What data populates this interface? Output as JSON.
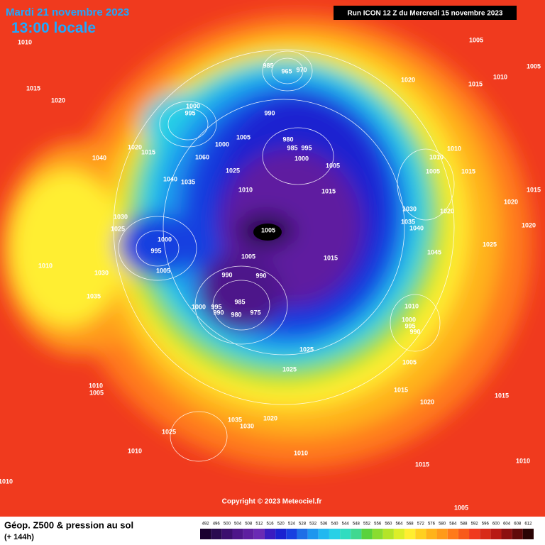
{
  "header": {
    "date": "Mardi 21 novembre 2023",
    "time": "13:00 locale",
    "run": "Run ICON 12 Z du Mercredi 15 novembre 2023"
  },
  "map": {
    "pressure_labels": [
      1010,
      1015,
      1020,
      1005,
      1010,
      1005,
      1015,
      1020,
      985,
      965,
      970,
      1000,
      995,
      990,
      980,
      985,
      995,
      1000,
      1005,
      1005,
      1000,
      1020,
      1015,
      1060,
      1025,
      1040,
      1035,
      1040,
      1010,
      1015,
      1010,
      1010,
      1005,
      1015,
      1030,
      1025,
      1000,
      995,
      1005,
      1005,
      1005,
      990,
      990,
      1015,
      1035,
      1040,
      1020,
      1030,
      1045,
      1010,
      1030,
      1035,
      1000,
      995,
      990,
      985,
      980,
      975,
      1010,
      1000,
      995,
      990,
      1025,
      1025,
      1005,
      1015,
      1020,
      1010,
      1005,
      1035,
      1030,
      1020,
      1025,
      1010,
      1010,
      1015,
      1010,
      1015,
      1010,
      1005,
      1020,
      1025,
      1020,
      1015
    ],
    "copyright": "Copyright © 2023 Meteociel.fr"
  },
  "footer": {
    "title": "Géop. Z500 & pression au sol",
    "subtitle": "(+ 144h)"
  },
  "colorbar": {
    "ticks": [
      492,
      496,
      500,
      504,
      508,
      512,
      516,
      520,
      524,
      528,
      532,
      536,
      540,
      544,
      548,
      552,
      556,
      560,
      564,
      568,
      572,
      576,
      580,
      584,
      588,
      592,
      596,
      600,
      604,
      608,
      612
    ],
    "colors": [
      "#1a0030",
      "#2a0a50",
      "#3c0f6e",
      "#4e168a",
      "#5e1fa0",
      "#6a2ab4",
      "#3a1cc0",
      "#1a22d0",
      "#1840e0",
      "#1e6ee6",
      "#1e96ee",
      "#22b8f0",
      "#28d0e6",
      "#30dcc0",
      "#40d890",
      "#5ad23c",
      "#8adc30",
      "#b4e428",
      "#dcee28",
      "#ffee30",
      "#ffd020",
      "#ffb31a",
      "#ff9a1a",
      "#ff7a1a",
      "#f85a1a",
      "#f03a1e",
      "#d82a18",
      "#b81a14",
      "#8c1010",
      "#600a0a",
      "#2a0404"
    ]
  }
}
